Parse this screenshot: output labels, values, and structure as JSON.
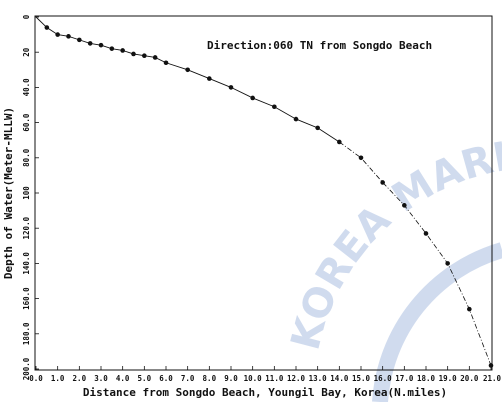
{
  "chart_data": {
    "type": "line",
    "title": "",
    "annotation": "Direction:060 TN from Songdo Beach",
    "xlabel": "Distance from Songdo Beach, Youngil Bay, Korea(N.miles)",
    "ylabel": "Depth of Water(Meter-MLLW)",
    "xlim": [
      0,
      21
    ],
    "ylim": [
      0,
      200
    ],
    "y_axis_inverted": true,
    "grid": false,
    "legend": "none",
    "x_ticks": [
      "0.0",
      "1.0",
      "2.0",
      "3.0",
      "4.0",
      "5.0",
      "6.0",
      "7.0",
      "8.0",
      "9.0",
      "10.0",
      "11.0",
      "12.0",
      "13.0",
      "14.0",
      "15.0",
      "16.0",
      "17.0",
      "18.0",
      "19.0",
      "20.0",
      "21.0"
    ],
    "y_ticks": [
      "0",
      "20",
      "40.0",
      "60.0",
      "80.0",
      "100",
      "120.0",
      "140.0",
      "160.0",
      "180.0",
      "200.0"
    ],
    "series": [
      {
        "marker": "dot",
        "color": "#111111",
        "x": [
          0,
          0.5,
          1.0,
          1.5,
          2.0,
          2.5,
          3.0,
          3.5,
          4.0,
          4.5,
          5.0,
          5.5,
          6.0,
          7,
          8,
          9,
          10,
          11,
          12,
          13,
          14,
          15,
          16,
          17,
          18,
          19,
          20,
          21
        ],
        "y": [
          0,
          6,
          10,
          11,
          13,
          15,
          16,
          18,
          19,
          21,
          22,
          23,
          26,
          30,
          35,
          40,
          46,
          51,
          58,
          63,
          71,
          80,
          94,
          107,
          123,
          140,
          166,
          198
        ]
      }
    ]
  },
  "watermark": {
    "text": "KOREA MARIT",
    "color": "#5b82c4"
  }
}
